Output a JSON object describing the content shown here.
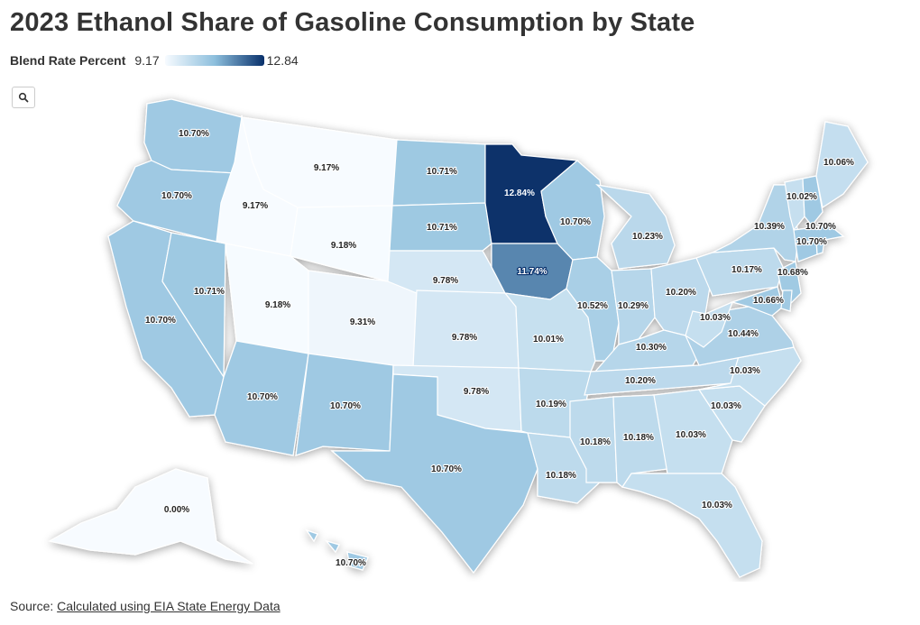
{
  "title": "2023 Ethanol Share of Gasoline Consumption by State",
  "legend": {
    "title": "Blend Rate Percent",
    "min": "9.17",
    "max": "12.84",
    "color_min": "#f7fbff",
    "color_mid": "#8dbfdd",
    "color_max": "#08306b"
  },
  "zoom": {
    "icon": "search-icon"
  },
  "source": {
    "prefix": "Source:",
    "link_text": "Calculated using EIA State Energy Data"
  },
  "states": [
    {
      "id": "WA",
      "value": 10.7,
      "label": "10.70%"
    },
    {
      "id": "OR",
      "value": 10.7,
      "label": "10.70%"
    },
    {
      "id": "CA",
      "value": 10.7,
      "label": "10.70%"
    },
    {
      "id": "NV",
      "value": 10.71,
      "label": "10.71%"
    },
    {
      "id": "ID",
      "value": 9.17,
      "label": "9.17%"
    },
    {
      "id": "MT",
      "value": 9.17,
      "label": "9.17%"
    },
    {
      "id": "WY",
      "value": 9.18,
      "label": "9.18%"
    },
    {
      "id": "UT",
      "value": 9.18,
      "label": "9.18%"
    },
    {
      "id": "CO",
      "value": 9.31,
      "label": "9.31%"
    },
    {
      "id": "AZ",
      "value": 10.7,
      "label": "10.70%"
    },
    {
      "id": "NM",
      "value": 10.7,
      "label": "10.70%"
    },
    {
      "id": "ND",
      "value": 10.71,
      "label": "10.71%"
    },
    {
      "id": "SD",
      "value": 10.71,
      "label": "10.71%"
    },
    {
      "id": "NE",
      "value": 9.78,
      "label": "9.78%"
    },
    {
      "id": "KS",
      "value": 9.78,
      "label": "9.78%"
    },
    {
      "id": "OK",
      "value": 9.78,
      "label": "9.78%"
    },
    {
      "id": "TX",
      "value": 10.7,
      "label": "10.70%"
    },
    {
      "id": "MN",
      "value": 12.84,
      "label": "12.84%"
    },
    {
      "id": "IA",
      "value": 11.74,
      "label": "11.74%"
    },
    {
      "id": "MO",
      "value": 10.01,
      "label": "10.01%"
    },
    {
      "id": "AR",
      "value": 10.19,
      "label": "10.19%"
    },
    {
      "id": "LA",
      "value": 10.18,
      "label": "10.18%"
    },
    {
      "id": "WI",
      "value": 10.7,
      "label": "10.70%"
    },
    {
      "id": "IL",
      "value": 10.52,
      "label": "10.52%"
    },
    {
      "id": "MI",
      "value": 10.23,
      "label": "10.23%"
    },
    {
      "id": "IN",
      "value": 10.29,
      "label": "10.29%"
    },
    {
      "id": "OH",
      "value": 10.2,
      "label": "10.20%"
    },
    {
      "id": "KY",
      "value": 10.3,
      "label": "10.30%"
    },
    {
      "id": "TN",
      "value": 10.2,
      "label": "10.20%"
    },
    {
      "id": "MS",
      "value": 10.18,
      "label": "10.18%"
    },
    {
      "id": "AL",
      "value": 10.18,
      "label": "10.18%"
    },
    {
      "id": "GA",
      "value": 10.03,
      "label": "10.03%"
    },
    {
      "id": "FL",
      "value": 10.03,
      "label": "10.03%"
    },
    {
      "id": "SC",
      "value": 10.03,
      "label": "10.03%"
    },
    {
      "id": "NC",
      "value": 10.03,
      "label": "10.03%"
    },
    {
      "id": "VA",
      "value": 10.44,
      "label": "10.44%"
    },
    {
      "id": "WV",
      "value": 10.03,
      "label": "10.03%"
    },
    {
      "id": "PA",
      "value": 10.17,
      "label": "10.17%"
    },
    {
      "id": "NY",
      "value": 10.39,
      "label": "10.39%"
    },
    {
      "id": "MD",
      "value": 10.66,
      "label": "10.66%"
    },
    {
      "id": "NJ",
      "value": 10.68,
      "label": "10.68%"
    },
    {
      "id": "VT",
      "value": 10.02,
      "label": "10.02%"
    },
    {
      "id": "NH",
      "value": 10.7,
      "label": "10.70%"
    },
    {
      "id": "MA",
      "value": 10.7,
      "label": "10.70%"
    },
    {
      "id": "ME",
      "value": 10.06,
      "label": "10.06%"
    },
    {
      "id": "CT",
      "value": 10.7
    },
    {
      "id": "RI",
      "value": 10.7
    },
    {
      "id": "DE",
      "value": 10.66
    },
    {
      "id": "AK",
      "value": 0.0,
      "label": "0.00%"
    },
    {
      "id": "HI",
      "value": 10.7,
      "label": "10.70%"
    }
  ]
}
